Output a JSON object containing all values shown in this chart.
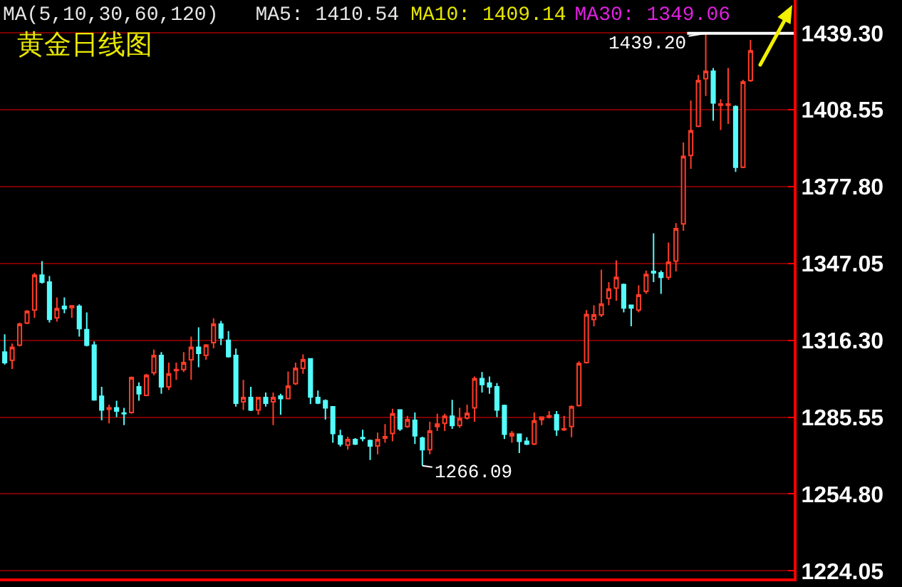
{
  "chart_data": {
    "type": "candlestick",
    "title": "黄金日线图",
    "annotations": [
      "MA(5,10,30,60,120)",
      "MA5: 1410.54",
      "MA10: 1409.14",
      "MA30: 1349.06",
      "1439.20",
      "1266.09"
    ],
    "categories": [
      null,
      null,
      null,
      null,
      null,
      null,
      null,
      null,
      null,
      null,
      null,
      null,
      null,
      null,
      null,
      null,
      null,
      null,
      null,
      null,
      null,
      null,
      null,
      null,
      null,
      null,
      null,
      null,
      null,
      null,
      null,
      null,
      null,
      null,
      null,
      null,
      null,
      null,
      null,
      null,
      null,
      null,
      null,
      null,
      null,
      null,
      null,
      null,
      null,
      null,
      null,
      null,
      null,
      null,
      null,
      null,
      null,
      null,
      null,
      null,
      null,
      null,
      null,
      null,
      null,
      null,
      null,
      null,
      null,
      null,
      null,
      null,
      null,
      null,
      null,
      null,
      null,
      null,
      null,
      null,
      null,
      null,
      null,
      null,
      null,
      null,
      null,
      null,
      null,
      null,
      null,
      null,
      null,
      null,
      null,
      null,
      null,
      null,
      null,
      null,
      null
    ],
    "ohlc": [
      [
        1311.6,
        1318.7,
        1306.6,
        1307.4
      ],
      [
        1308.3,
        1315.0,
        1304.8,
        1313.5
      ],
      [
        1314.4,
        1323.4,
        1313.9,
        1322.8
      ],
      [
        1323.2,
        1328.4,
        1322.8,
        1327.9
      ],
      [
        1328.4,
        1343.3,
        1325.3,
        1342.4
      ],
      [
        1342.4,
        1348.0,
        1339.0,
        1339.6
      ],
      [
        1339.6,
        1342.0,
        1323.4,
        1324.7
      ],
      [
        1325.3,
        1333.5,
        1323.8,
        1329.0
      ],
      [
        1329.9,
        1333.5,
        1327.1,
        1329.0
      ],
      [
        1329.4,
        1330.3,
        1325.3,
        1330.1
      ],
      [
        1329.9,
        1330.7,
        1317.8,
        1321.0
      ],
      [
        1320.6,
        1327.5,
        1313.9,
        1314.4
      ],
      [
        1314.4,
        1315.9,
        1292.1,
        1292.5
      ],
      [
        1293.9,
        1297.7,
        1284.3,
        1288.4
      ],
      [
        1288.7,
        1290.6,
        1283.1,
        1289.3
      ],
      [
        1289.3,
        1292.1,
        1285.6,
        1288.0
      ],
      [
        1287.2,
        1289.3,
        1282.4,
        1286.9
      ],
      [
        1287.4,
        1301.8,
        1286.9,
        1301.4
      ],
      [
        1297.7,
        1299.5,
        1292.1,
        1294.9
      ],
      [
        1294.3,
        1302.9,
        1293.9,
        1302.3
      ],
      [
        1303.3,
        1312.6,
        1302.3,
        1310.2
      ],
      [
        1310.2,
        1311.6,
        1294.9,
        1297.7
      ],
      [
        1297.7,
        1307.4,
        1296.4,
        1302.9
      ],
      [
        1304.2,
        1307.4,
        1300.5,
        1304.6
      ],
      [
        1304.6,
        1311.6,
        1303.6,
        1307.4
      ],
      [
        1308.5,
        1317.8,
        1300.5,
        1313.5
      ],
      [
        1313.5,
        1321.5,
        1305.5,
        1311.1
      ],
      [
        1310.3,
        1314.8,
        1308.5,
        1314.4
      ],
      [
        1315.4,
        1325.1,
        1313.1,
        1322.8
      ],
      [
        1322.8,
        1324.1,
        1314.4,
        1317.2
      ],
      [
        1316.3,
        1320.0,
        1309.4,
        1309.8
      ],
      [
        1310.2,
        1313.0,
        1289.8,
        1291.1
      ],
      [
        1291.7,
        1300.5,
        1288.4,
        1293.4
      ],
      [
        1293.4,
        1297.7,
        1288.0,
        1288.4
      ],
      [
        1288.4,
        1293.6,
        1286.5,
        1293.4
      ],
      [
        1293.4,
        1295.4,
        1289.8,
        1291.1
      ],
      [
        1291.7,
        1295.4,
        1282.4,
        1293.4
      ],
      [
        1294.0,
        1294.9,
        1286.5,
        1293.0
      ],
      [
        1293.0,
        1303.8,
        1292.6,
        1298.0
      ],
      [
        1299.0,
        1307.4,
        1298.4,
        1305.1
      ],
      [
        1305.1,
        1310.7,
        1302.9,
        1308.5
      ],
      [
        1308.9,
        1309.2,
        1290.8,
        1293.6
      ],
      [
        1293.4,
        1296.2,
        1290.8,
        1291.2
      ],
      [
        1292.1,
        1292.6,
        1284.6,
        1289.3
      ],
      [
        1289.7,
        1289.8,
        1275.3,
        1279.0
      ],
      [
        1278.1,
        1280.5,
        1273.8,
        1274.8
      ],
      [
        1274.4,
        1277.7,
        1272.5,
        1276.6
      ],
      [
        1276.6,
        1277.2,
        1274.4,
        1274.8
      ],
      [
        1277.4,
        1280.5,
        1275.9,
        1277.0
      ],
      [
        1276.2,
        1276.6,
        1268.4,
        1274.0
      ],
      [
        1274.0,
        1279.4,
        1270.7,
        1276.6
      ],
      [
        1277.2,
        1282.8,
        1275.3,
        1277.7
      ],
      [
        1279.0,
        1288.9,
        1275.9,
        1286.9
      ],
      [
        1288.4,
        1288.7,
        1280.0,
        1280.9
      ],
      [
        1281.8,
        1286.1,
        1281.3,
        1284.6
      ],
      [
        1284.3,
        1287.4,
        1274.8,
        1278.1
      ],
      [
        1277.2,
        1277.7,
        1266.09,
        1272.5
      ],
      [
        1272.5,
        1283.7,
        1270.7,
        1280.0
      ],
      [
        1281.8,
        1286.9,
        1280.0,
        1282.8
      ],
      [
        1283.1,
        1286.9,
        1280.0,
        1285.9
      ],
      [
        1285.9,
        1292.5,
        1280.9,
        1282.2
      ],
      [
        1282.2,
        1289.3,
        1281.3,
        1285.0
      ],
      [
        1285.2,
        1290.6,
        1284.6,
        1287.1
      ],
      [
        1289.3,
        1301.8,
        1283.7,
        1301.0
      ],
      [
        1301.0,
        1303.6,
        1295.4,
        1298.6
      ],
      [
        1299.2,
        1301.8,
        1294.9,
        1297.7
      ],
      [
        1297.7,
        1299.2,
        1285.6,
        1288.4
      ],
      [
        1290.2,
        1290.6,
        1276.8,
        1278.7
      ],
      [
        1278.1,
        1280.0,
        1275.3,
        1279.0
      ],
      [
        1278.7,
        1279.0,
        1271.2,
        1275.9
      ],
      [
        1275.9,
        1277.5,
        1274.4,
        1274.8
      ],
      [
        1274.8,
        1287.4,
        1274.4,
        1284.1
      ],
      [
        1284.6,
        1285.6,
        1282.4,
        1285.6
      ],
      [
        1285.6,
        1288.0,
        1285.0,
        1286.1
      ],
      [
        1286.5,
        1288.0,
        1278.1,
        1280.5
      ],
      [
        1280.5,
        1286.1,
        1280.0,
        1280.9
      ],
      [
        1281.8,
        1290.2,
        1277.5,
        1289.8
      ],
      [
        1290.2,
        1307.9,
        1289.8,
        1307.0
      ],
      [
        1307.4,
        1328.4,
        1307.0,
        1326.6
      ],
      [
        1324.6,
        1330.3,
        1321.9,
        1326.5
      ],
      [
        1326.5,
        1344.6,
        1325.6,
        1330.8
      ],
      [
        1333.1,
        1339.6,
        1330.3,
        1336.8
      ],
      [
        1337.2,
        1348.3,
        1332.1,
        1341.5
      ],
      [
        1338.6,
        1339.0,
        1327.5,
        1329.3
      ],
      [
        1330.3,
        1330.6,
        1321.9,
        1329.3
      ],
      [
        1328.4,
        1338.3,
        1327.5,
        1334.5
      ],
      [
        1335.9,
        1344.2,
        1334.9,
        1342.7
      ],
      [
        1343.9,
        1359.1,
        1339.6,
        1343.3
      ],
      [
        1343.3,
        1344.2,
        1334.9,
        1341.5
      ],
      [
        1341.5,
        1355.4,
        1340.5,
        1347.6
      ],
      [
        1348.0,
        1363.2,
        1343.9,
        1361.0
      ],
      [
        1362.9,
        1395.5,
        1360.1,
        1389.9
      ],
      [
        1390.3,
        1412.3,
        1384.9,
        1400.2
      ],
      [
        1402.0,
        1422.5,
        1401.6,
        1420.3
      ],
      [
        1421.0,
        1439.2,
        1414.1,
        1424.0
      ],
      [
        1424.0,
        1425.3,
        1404.2,
        1411.3
      ],
      [
        1410.4,
        1412.8,
        1400.5,
        1410.9
      ],
      [
        1410.4,
        1425.3,
        1402.9,
        1410.9
      ],
      [
        1409.8,
        1410.4,
        1383.7,
        1385.6
      ],
      [
        1385.6,
        1420.6,
        1385.2,
        1419.7
      ],
      [
        1420.3,
        1436.5,
        1419.7,
        1432.2
      ]
    ],
    "ylim": [
      1221,
      1452.5
    ],
    "yticks": [
      1224.05,
      {
        "value": 1254.8,
        "label": "1254.80"
      },
      1285.55,
      {
        "value": 1316.3,
        "label": "1316.30"
      },
      1347.05,
      {
        "value": 1377.8,
        "label": "1377.80"
      },
      1408.55,
      {
        "value": 1439.3,
        "label": "1439.30"
      }
    ],
    "grid": "y",
    "tick_labels": "y",
    "ref_lines": [
      {
        "axis": "y",
        "value": 1439.2,
        "color": "#ffffff"
      }
    ]
  }
}
